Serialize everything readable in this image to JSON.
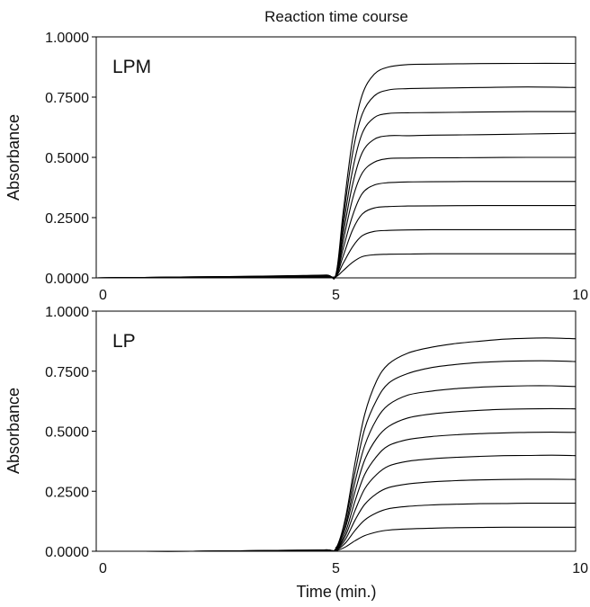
{
  "chart_data": {
    "type": "line",
    "title": "Reaction time course",
    "xlabel": "Time (min.)",
    "ylabel": "Absorbance",
    "xlim": [
      0,
      10
    ],
    "ylim": [
      0,
      1.0
    ],
    "x_ticks": [
      0,
      5,
      10
    ],
    "x_tick_labels": [
      "0",
      "5",
      "10"
    ],
    "y_ticks": [
      0,
      0.25,
      0.5,
      0.75,
      1.0
    ],
    "y_tick_labels": [
      "0.0000",
      "0.2500",
      "0.5000",
      "0.7500",
      "1.0000"
    ],
    "grid": false,
    "legend": "none",
    "panels": [
      {
        "label": "LPM",
        "x": [
          0,
          1,
          2,
          3,
          4,
          4.8,
          5.0,
          5.15,
          5.35,
          5.55,
          5.8,
          6.1,
          6.5,
          7.0,
          8.0,
          9.0,
          10.0
        ],
        "series": [
          {
            "values": [
              0,
              0.002,
              0.004,
              0.006,
              0.009,
              0.012,
              0.015,
              0.27,
              0.58,
              0.76,
              0.845,
              0.875,
              0.885,
              0.887,
              0.889,
              0.89,
              0.89
            ]
          },
          {
            "values": [
              0,
              0.002,
              0.004,
              0.006,
              0.008,
              0.011,
              0.013,
              0.24,
              0.52,
              0.68,
              0.755,
              0.78,
              0.785,
              0.787,
              0.79,
              0.792,
              0.79
            ]
          },
          {
            "values": [
              0,
              0.002,
              0.004,
              0.005,
              0.007,
              0.01,
              0.012,
              0.21,
              0.45,
              0.6,
              0.665,
              0.682,
              0.685,
              0.686,
              0.688,
              0.69,
              0.69
            ]
          },
          {
            "values": [
              0,
              0.001,
              0.003,
              0.005,
              0.007,
              0.009,
              0.011,
              0.18,
              0.39,
              0.52,
              0.575,
              0.59,
              0.59,
              0.592,
              0.594,
              0.597,
              0.6
            ]
          },
          {
            "values": [
              0,
              0.001,
              0.003,
              0.004,
              0.006,
              0.008,
              0.01,
              0.15,
              0.33,
              0.435,
              0.48,
              0.495,
              0.497,
              0.498,
              0.499,
              0.5,
              0.5
            ]
          },
          {
            "values": [
              0,
              0.001,
              0.002,
              0.004,
              0.005,
              0.007,
              0.009,
              0.12,
              0.26,
              0.35,
              0.385,
              0.395,
              0.398,
              0.399,
              0.4,
              0.4,
              0.4
            ]
          },
          {
            "values": [
              0,
              0.001,
              0.002,
              0.003,
              0.004,
              0.006,
              0.008,
              0.09,
              0.2,
              0.265,
              0.29,
              0.296,
              0.298,
              0.299,
              0.3,
              0.3,
              0.3
            ]
          },
          {
            "values": [
              0,
              0.001,
              0.002,
              0.002,
              0.003,
              0.005,
              0.006,
              0.06,
              0.13,
              0.175,
              0.193,
              0.197,
              0.199,
              0.2,
              0.2,
              0.2,
              0.2
            ]
          },
          {
            "values": [
              0,
              0.001,
              0.001,
              0.002,
              0.003,
              0.004,
              0.005,
              0.03,
              0.065,
              0.088,
              0.096,
              0.098,
              0.099,
              0.1,
              0.1,
              0.1,
              0.1
            ]
          }
        ]
      },
      {
        "label": "LP",
        "x": [
          0,
          1,
          2,
          3,
          4,
          4.8,
          5.0,
          5.2,
          5.4,
          5.6,
          5.85,
          6.1,
          6.5,
          7.0,
          7.5,
          8.0,
          8.5,
          9.0,
          9.5,
          10.0
        ],
        "series": [
          {
            "values": [
              0,
              0,
              0,
              0.002,
              0.004,
              0.006,
              0.012,
              0.14,
              0.37,
              0.57,
              0.71,
              0.78,
              0.825,
              0.85,
              0.865,
              0.875,
              0.883,
              0.887,
              0.888,
              0.885
            ]
          },
          {
            "values": [
              0,
              0,
              0,
              0.002,
              0.004,
              0.006,
              0.011,
              0.13,
              0.33,
              0.51,
              0.63,
              0.7,
              0.74,
              0.765,
              0.778,
              0.786,
              0.791,
              0.793,
              0.793,
              0.79
            ]
          },
          {
            "values": [
              0,
              0,
              0,
              0.002,
              0.003,
              0.005,
              0.01,
              0.11,
              0.29,
              0.44,
              0.55,
              0.61,
              0.65,
              0.667,
              0.677,
              0.683,
              0.687,
              0.689,
              0.689,
              0.686
            ]
          },
          {
            "values": [
              0,
              0,
              0,
              0.001,
              0.003,
              0.005,
              0.009,
              0.1,
              0.25,
              0.38,
              0.47,
              0.52,
              0.555,
              0.572,
              0.581,
              0.587,
              0.591,
              0.593,
              0.594,
              0.593
            ]
          },
          {
            "values": [
              0,
              0,
              0,
              0.001,
              0.003,
              0.004,
              0.008,
              0.08,
              0.21,
              0.32,
              0.395,
              0.44,
              0.465,
              0.478,
              0.485,
              0.49,
              0.493,
              0.495,
              0.496,
              0.495
            ]
          },
          {
            "values": [
              0,
              0,
              0,
              0.001,
              0.002,
              0.004,
              0.007,
              0.065,
              0.17,
              0.26,
              0.32,
              0.355,
              0.375,
              0.385,
              0.391,
              0.395,
              0.398,
              0.399,
              0.4,
              0.398
            ]
          },
          {
            "values": [
              0,
              0,
              0,
              0.001,
              0.002,
              0.003,
              0.005,
              0.05,
              0.13,
              0.195,
              0.24,
              0.265,
              0.28,
              0.289,
              0.294,
              0.297,
              0.299,
              0.3,
              0.3,
              0.299
            ]
          },
          {
            "values": [
              0,
              0,
              0,
              0.001,
              0.001,
              0.002,
              0.004,
              0.035,
              0.087,
              0.13,
              0.16,
              0.177,
              0.187,
              0.193,
              0.196,
              0.198,
              0.199,
              0.2,
              0.2,
              0.2
            ]
          },
          {
            "values": [
              0,
              0,
              0,
              0,
              0.001,
              0.001,
              0.002,
              0.018,
              0.044,
              0.065,
              0.08,
              0.088,
              0.093,
              0.096,
              0.098,
              0.099,
              0.1,
              0.1,
              0.1,
              0.1
            ]
          }
        ]
      }
    ]
  }
}
